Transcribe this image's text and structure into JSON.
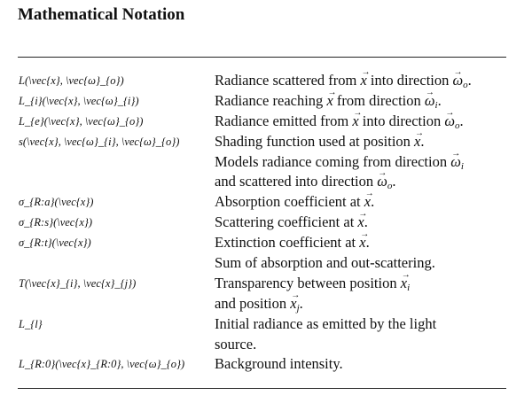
{
  "title": "Mathematical Notation",
  "rows": [
    {
      "symbol": "L(\\vec{x}, \\vec{ω}_{o})",
      "description": "Radiance scattered from \\vec{x} into direction \\vec{ω}_{o}."
    },
    {
      "symbol": "L_{i}(\\vec{x}, \\vec{ω}_{i})",
      "description": "Radiance reaching \\vec{x} from direction \\vec{ω}_{i}."
    },
    {
      "symbol": "L_{e}(\\vec{x}, \\vec{ω}_{o})",
      "description": "Radiance emitted from \\vec{x} into direction \\vec{ω}_{o}."
    },
    {
      "symbol": "s(\\vec{x}, \\vec{ω}_{i}, \\vec{ω}_{o})",
      "description": "Shading function used at position \\vec{x}."
    },
    {
      "symbol": "",
      "description": "Models radiance coming from direction \\vec{ω}_{i}"
    },
    {
      "symbol": "",
      "description": "and scattered into direction \\vec{ω}_{o}."
    },
    {
      "symbol": "σ_{R:a}(\\vec{x})",
      "description": "Absorption coefficient at \\vec{x}."
    },
    {
      "symbol": "σ_{R:s}(\\vec{x})",
      "description": "Scattering coefficient at \\vec{x}."
    },
    {
      "symbol": "σ_{R:t}(\\vec{x})",
      "description": "Extinction coefficient at \\vec{x}."
    },
    {
      "symbol": "",
      "description": "Sum of absorption and out-scattering."
    },
    {
      "symbol": "T(\\vec{x}_{i}, \\vec{x}_{j})",
      "description": "Transparency between position \\vec{x}_{i}"
    },
    {
      "symbol": "",
      "description": "and position \\vec{x}_{j}."
    },
    {
      "symbol": "L_{l}",
      "description": "Initial radiance as emitted by the light"
    },
    {
      "symbol": "",
      "description": "source."
    },
    {
      "symbol": "L_{R:0}(\\vec{x}_{R:0}, \\vec{ω}_{o})",
      "description": "Background intensity."
    }
  ]
}
